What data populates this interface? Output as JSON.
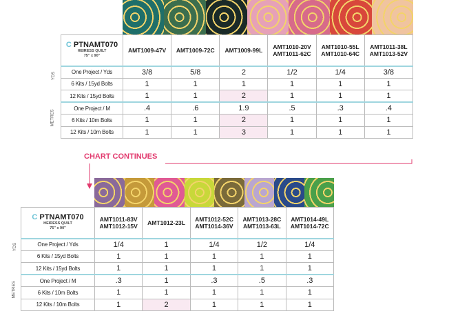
{
  "top": {
    "title_prefix": "C",
    "title": "PTNAMT070",
    "subtitle": "HEIRESS QUILT",
    "size": "75\" x 90\"",
    "swatch_colors": [
      "#1f6f6a",
      "#3b6e4e",
      "#1a2a28",
      "#e6a1b8",
      "#d76a8a",
      "#d8473b",
      "#f0c4a0"
    ],
    "columns": [
      "AMT1009-47V",
      "AMT1009-72C",
      "AMT1009-99L",
      "AMT1010-20V\nAMT1011-62C",
      "AMT1010-55L\nAMT1010-64C",
      "AMT1011-38L\nAMT1013-52V"
    ],
    "rows": [
      {
        "label": "One Project / Yds",
        "values": [
          "3/8",
          "5/8",
          "2",
          "1/2",
          "1/4",
          "3/8"
        ]
      },
      {
        "label": "6 Kits / 15yd Bolts",
        "values": [
          "1",
          "1",
          "1",
          "1",
          "1",
          "1"
        ]
      },
      {
        "label": "12 Kits / 15yd Bolts",
        "values": [
          "1",
          "1",
          "2",
          "1",
          "1",
          "1"
        ]
      },
      {
        "label": "One Project / M",
        "values": [
          ".4",
          ".6",
          "1.9",
          ".5",
          ".3",
          ".4"
        ]
      },
      {
        "label": "6 Kits / 10m Bolts",
        "values": [
          "1",
          "1",
          "2",
          "1",
          "1",
          "1"
        ]
      },
      {
        "label": "12 Kits / 10m Bolts",
        "values": [
          "1",
          "1",
          "3",
          "1",
          "1",
          "1"
        ]
      }
    ]
  },
  "side_labels": {
    "yds": "YDS",
    "metres": "METRES"
  },
  "continues": "CHART CONTINUES",
  "bottom": {
    "title_prefix": "C",
    "title": "PTNAMT070",
    "subtitle": "HEIRESS QUILT",
    "size": "75\" x 90\"",
    "swatch_colors": [
      "#8a6a9a",
      "#c59a3a",
      "#e05a94",
      "#c8d83a",
      "#7a6a3a",
      "#b9a6d0",
      "#2a4a8a",
      "#4aa04a"
    ],
    "columns": [
      "AMT1011-83V\nAMT1012-15V",
      "AMT1012-23L",
      "AMT1012-52C\nAMT1014-36V",
      "AMT1013-28C\nAMT1013-63L",
      "AMT1014-49L\nAMT1014-72C"
    ],
    "rows": [
      {
        "label": "One Project / Yds",
        "values": [
          "1/4",
          "1",
          "1/4",
          "1/2",
          "1/4"
        ]
      },
      {
        "label": "6 Kits / 15yd Bolts",
        "values": [
          "1",
          "1",
          "1",
          "1",
          "1"
        ]
      },
      {
        "label": "12 Kits / 15yd Bolts",
        "values": [
          "1",
          "1",
          "1",
          "1",
          "1"
        ]
      },
      {
        "label": "One Project / M",
        "values": [
          ".3",
          "1",
          ".3",
          ".5",
          ".3"
        ]
      },
      {
        "label": "6 Kits / 10m Bolts",
        "values": [
          "1",
          "1",
          "1",
          "1",
          "1"
        ]
      },
      {
        "label": "12 Kits / 10m Bolts",
        "values": [
          "1",
          "2",
          "1",
          "1",
          "1"
        ]
      }
    ]
  }
}
